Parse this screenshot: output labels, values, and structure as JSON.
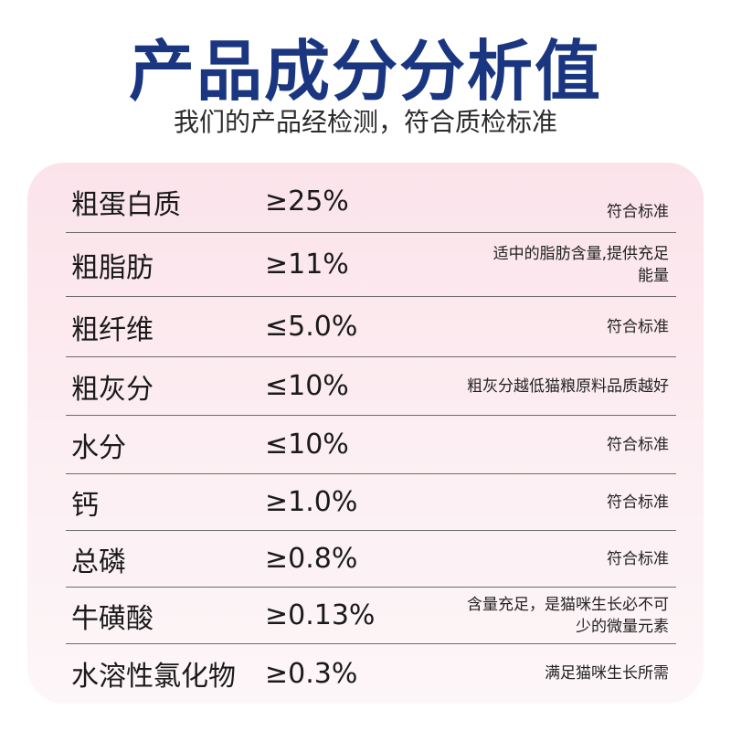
{
  "header": {
    "title": "产品成分分析值",
    "subtitle": "我们的产品经检测，符合质检标准"
  },
  "colors": {
    "title": "#1b3680",
    "card_background": "#fbe3ea",
    "divider": "#6b6b6b"
  },
  "table": {
    "rows": [
      {
        "name": "粗蛋白质",
        "value": "≥25%",
        "note": [
          "符合标准"
        ]
      },
      {
        "name": "粗脂肪",
        "value": "≥11%",
        "note": [
          "适中的脂肪含量,提供充足",
          "能量"
        ]
      },
      {
        "name": "粗纤维",
        "value": "≤5.0%",
        "note": [
          "符合标准"
        ]
      },
      {
        "name": "粗灰分",
        "value": "≤10%",
        "note": [
          "粗灰分越低猫粮原料品质越好"
        ]
      },
      {
        "name": "水分",
        "value": "≤10%",
        "note": [
          "符合标准"
        ]
      },
      {
        "name": "钙",
        "value": "≥1.0%",
        "note": [
          "符合标准"
        ]
      },
      {
        "name": "总磷",
        "value": "≥0.8%",
        "note": [
          "符合标准"
        ]
      },
      {
        "name": "牛磺酸",
        "value": "≥0.13%",
        "note": [
          "含量充足，是猫咪生长必不可",
          "少的微量元素"
        ]
      },
      {
        "name": "水溶性氯化物",
        "value": "≥0.3%",
        "note": [
          "满足猫咪生长所需"
        ]
      }
    ]
  }
}
